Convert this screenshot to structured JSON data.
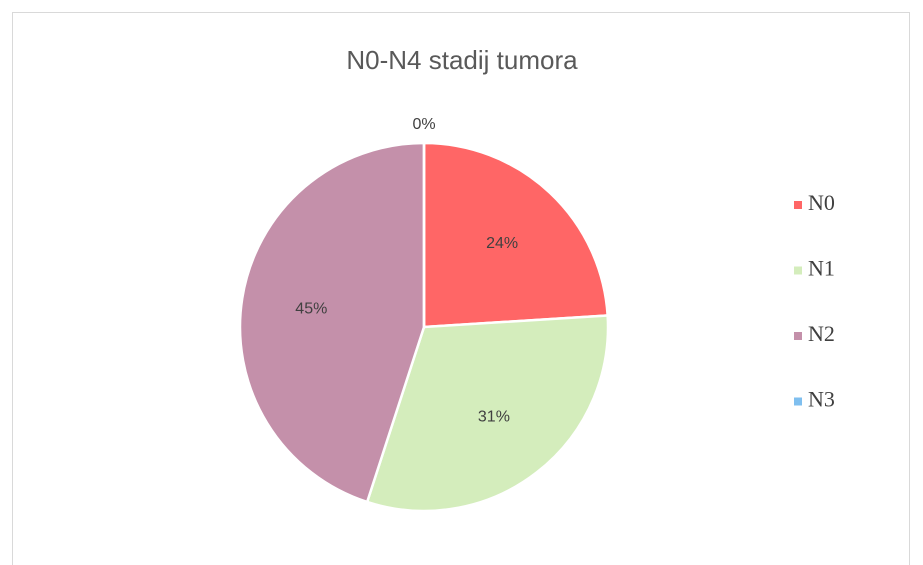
{
  "chart_data": {
    "type": "pie",
    "title": "N0-N4 stadij tumora",
    "categories": [
      "N0",
      "N1",
      "N2",
      "N3"
    ],
    "values": [
      24,
      31,
      45,
      0
    ],
    "value_labels": [
      "24%",
      "31%",
      "45%",
      "0%"
    ],
    "colors": [
      "#ff6666",
      "#d4edbc",
      "#c490aa",
      "#7fbfef"
    ],
    "legend": "right"
  }
}
